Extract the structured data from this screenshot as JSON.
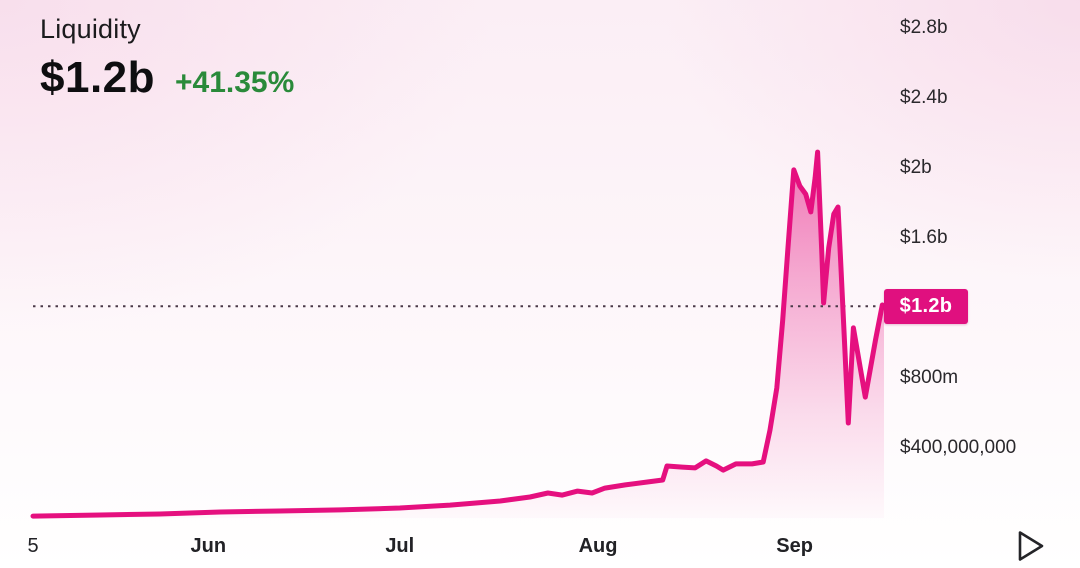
{
  "header": {
    "title": "Liquidity",
    "value": "$1.2b",
    "change": "+41.35%",
    "change_color": "#2a8a3a"
  },
  "chart_data": {
    "type": "area",
    "title": "Liquidity",
    "unit": "USD",
    "line_color": "#e5107f",
    "dotted_line_color": "#4a3948",
    "legend": [],
    "grid": false,
    "y_axis_side": "right",
    "ylim_billions": [
      0,
      2.96
    ],
    "y_ticks": [
      {
        "label": "$2.8b",
        "value": 2.8
      },
      {
        "label": "$2.4b",
        "value": 2.4
      },
      {
        "label": "$2b",
        "value": 2.0
      },
      {
        "label": "$1.6b",
        "value": 1.6
      },
      {
        "label": "$800m",
        "value": 0.8
      },
      {
        "label": "$400,000,000",
        "value": 0.4
      }
    ],
    "badge": {
      "label": "$1.2b",
      "value": 1.21,
      "color": "#e0107f"
    },
    "x_ticks": [
      {
        "label": "5",
        "pos": 0.0
      },
      {
        "label": "Jun",
        "pos": 0.206
      },
      {
        "label": "Jul",
        "pos": 0.431
      },
      {
        "label": "Aug",
        "pos": 0.664
      },
      {
        "label": "Sep",
        "pos": 0.895
      }
    ],
    "points": [
      [
        0.0,
        0.011
      ],
      [
        0.079,
        0.017
      ],
      [
        0.149,
        0.023
      ],
      [
        0.22,
        0.034
      ],
      [
        0.29,
        0.04
      ],
      [
        0.361,
        0.046
      ],
      [
        0.431,
        0.057
      ],
      [
        0.49,
        0.074
      ],
      [
        0.549,
        0.097
      ],
      [
        0.584,
        0.12
      ],
      [
        0.605,
        0.143
      ],
      [
        0.622,
        0.131
      ],
      [
        0.64,
        0.154
      ],
      [
        0.657,
        0.143
      ],
      [
        0.672,
        0.171
      ],
      [
        0.696,
        0.189
      ],
      [
        0.723,
        0.206
      ],
      [
        0.74,
        0.217
      ],
      [
        0.745,
        0.297
      ],
      [
        0.763,
        0.291
      ],
      [
        0.778,
        0.286
      ],
      [
        0.791,
        0.326
      ],
      [
        0.803,
        0.297
      ],
      [
        0.811,
        0.274
      ],
      [
        0.826,
        0.309
      ],
      [
        0.845,
        0.309
      ],
      [
        0.858,
        0.32
      ],
      [
        0.866,
        0.503
      ],
      [
        0.874,
        0.743
      ],
      [
        0.881,
        1.131
      ],
      [
        0.887,
        1.531
      ],
      [
        0.894,
        1.989
      ],
      [
        0.901,
        1.897
      ],
      [
        0.908,
        1.851
      ],
      [
        0.914,
        1.749
      ],
      [
        0.919,
        1.943
      ],
      [
        0.922,
        2.091
      ],
      [
        0.927,
        1.503
      ],
      [
        0.929,
        1.229
      ],
      [
        0.935,
        1.543
      ],
      [
        0.941,
        1.737
      ],
      [
        0.946,
        1.777
      ],
      [
        0.949,
        1.474
      ],
      [
        0.954,
        0.96
      ],
      [
        0.958,
        0.543
      ],
      [
        0.964,
        1.086
      ],
      [
        0.978,
        0.691
      ],
      [
        0.99,
        1.017
      ],
      [
        0.998,
        1.217
      ],
      [
        1.0,
        1.211
      ]
    ]
  },
  "controls": {
    "play_icon": "play-outline"
  }
}
